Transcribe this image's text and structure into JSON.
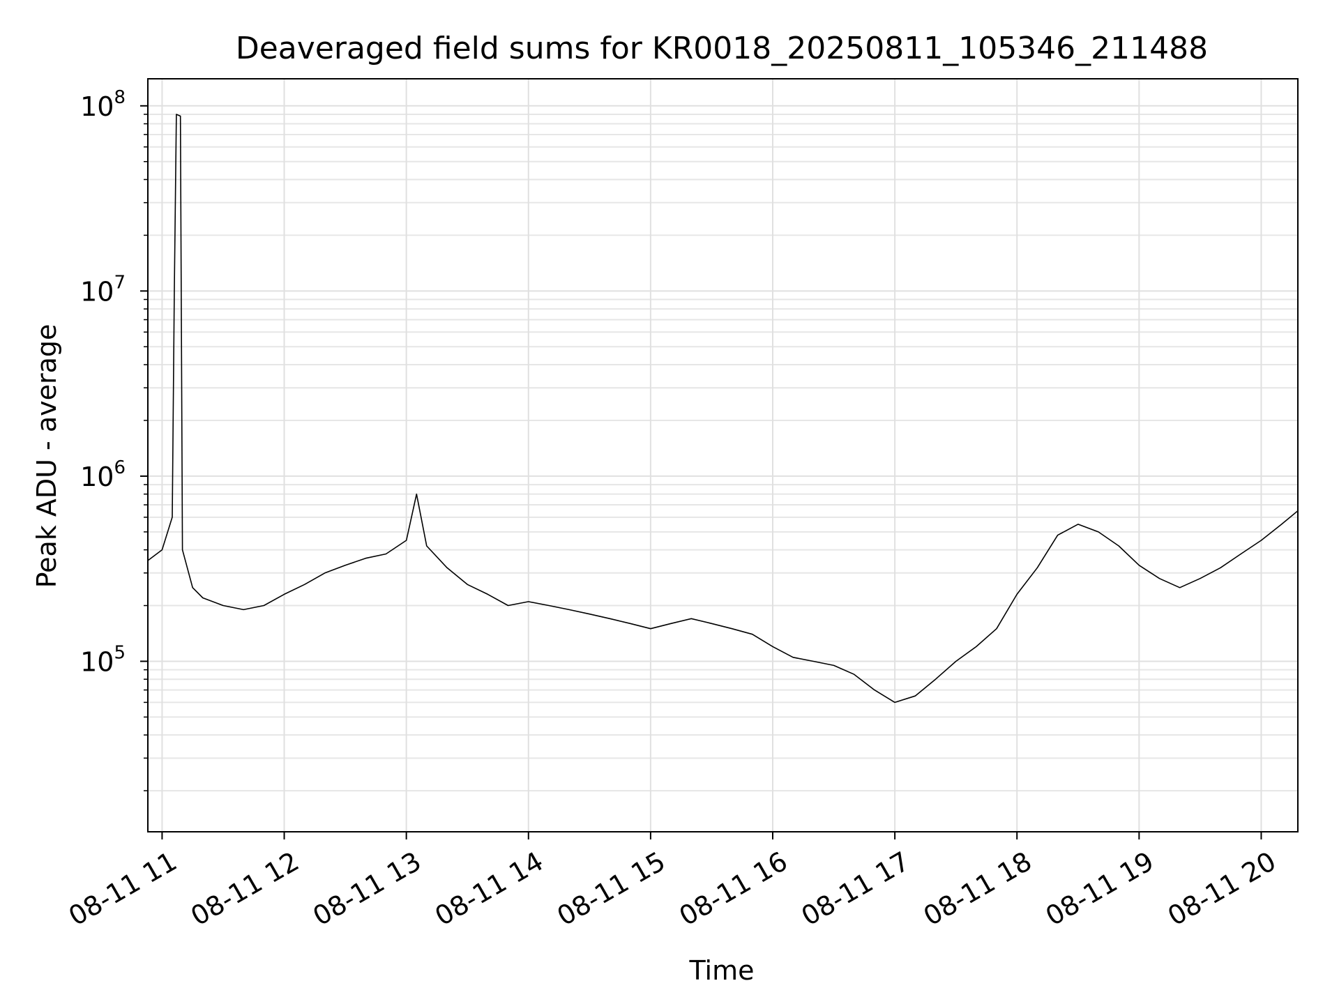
{
  "chart_data": {
    "type": "line",
    "title": "Deaveraged field sums for KR0018_20250811_105346_211488",
    "xlabel": "Time",
    "ylabel": "Peak ADU - average",
    "yscale": "log",
    "grid": true,
    "grid_minor": true,
    "legend": "none",
    "xlim": [
      "2025-08-11 10:53",
      "2025-08-11 20:18"
    ],
    "ylim": [
      12000,
      140000000
    ],
    "x_ticks": [
      {
        "value": "2025-08-11 11:00",
        "label": "08-11 11"
      },
      {
        "value": "2025-08-11 12:00",
        "label": "08-11 12"
      },
      {
        "value": "2025-08-11 13:00",
        "label": "08-11 13"
      },
      {
        "value": "2025-08-11 14:00",
        "label": "08-11 14"
      },
      {
        "value": "2025-08-11 15:00",
        "label": "08-11 15"
      },
      {
        "value": "2025-08-11 16:00",
        "label": "08-11 16"
      },
      {
        "value": "2025-08-11 17:00",
        "label": "08-11 17"
      },
      {
        "value": "2025-08-11 18:00",
        "label": "08-11 18"
      },
      {
        "value": "2025-08-11 19:00",
        "label": "08-11 19"
      },
      {
        "value": "2025-08-11 20:00",
        "label": "08-11 20"
      }
    ],
    "y_ticks": [
      {
        "value": 100000,
        "base": "10",
        "exp": "5"
      },
      {
        "value": 1000000,
        "base": "10",
        "exp": "6"
      },
      {
        "value": 10000000,
        "base": "10",
        "exp": "7"
      },
      {
        "value": 100000000,
        "base": "10",
        "exp": "8"
      }
    ],
    "series_color": "#000000",
    "series": [
      {
        "x": [
          "2025-08-11 10:53",
          "2025-08-11 11:00",
          "2025-08-11 11:05",
          "2025-08-11 11:06",
          "2025-08-11 11:07",
          "2025-08-11 11:09",
          "2025-08-11 11:10",
          "2025-08-11 11:15",
          "2025-08-11 11:20",
          "2025-08-11 11:30",
          "2025-08-11 11:40",
          "2025-08-11 11:50",
          "2025-08-11 12:00",
          "2025-08-11 12:10",
          "2025-08-11 12:20",
          "2025-08-11 12:30",
          "2025-08-11 12:40",
          "2025-08-11 12:50",
          "2025-08-11 13:00",
          "2025-08-11 13:05",
          "2025-08-11 13:10",
          "2025-08-11 13:20",
          "2025-08-11 13:30",
          "2025-08-11 13:40",
          "2025-08-11 13:50",
          "2025-08-11 14:00",
          "2025-08-11 14:10",
          "2025-08-11 14:20",
          "2025-08-11 14:30",
          "2025-08-11 14:40",
          "2025-08-11 14:50",
          "2025-08-11 15:00",
          "2025-08-11 15:10",
          "2025-08-11 15:20",
          "2025-08-11 15:30",
          "2025-08-11 15:40",
          "2025-08-11 15:50",
          "2025-08-11 16:00",
          "2025-08-11 16:10",
          "2025-08-11 16:20",
          "2025-08-11 16:30",
          "2025-08-11 16:40",
          "2025-08-11 16:50",
          "2025-08-11 17:00",
          "2025-08-11 17:10",
          "2025-08-11 17:20",
          "2025-08-11 17:30",
          "2025-08-11 17:40",
          "2025-08-11 17:50",
          "2025-08-11 18:00",
          "2025-08-11 18:10",
          "2025-08-11 18:20",
          "2025-08-11 18:30",
          "2025-08-11 18:40",
          "2025-08-11 18:50",
          "2025-08-11 19:00",
          "2025-08-11 19:10",
          "2025-08-11 19:20",
          "2025-08-11 19:30",
          "2025-08-11 19:40",
          "2025-08-11 19:50",
          "2025-08-11 20:00",
          "2025-08-11 20:10",
          "2025-08-11 20:18"
        ],
        "y": [
          350000,
          400000,
          600000,
          9500000,
          90000000,
          88000000,
          400000,
          250000,
          220000,
          200000,
          190000,
          200000,
          230000,
          260000,
          300000,
          330000,
          360000,
          380000,
          450000,
          800000,
          420000,
          320000,
          260000,
          230000,
          200000,
          210000,
          200000,
          190000,
          180000,
          170000,
          160000,
          150000,
          160000,
          170000,
          160000,
          150000,
          140000,
          120000,
          105000,
          100000,
          95000,
          85000,
          70000,
          60000,
          65000,
          80000,
          100000,
          120000,
          150000,
          230000,
          320000,
          480000,
          550000,
          500000,
          420000,
          330000,
          280000,
          250000,
          280000,
          320000,
          380000,
          450000,
          550000,
          650000
        ]
      }
    ]
  }
}
